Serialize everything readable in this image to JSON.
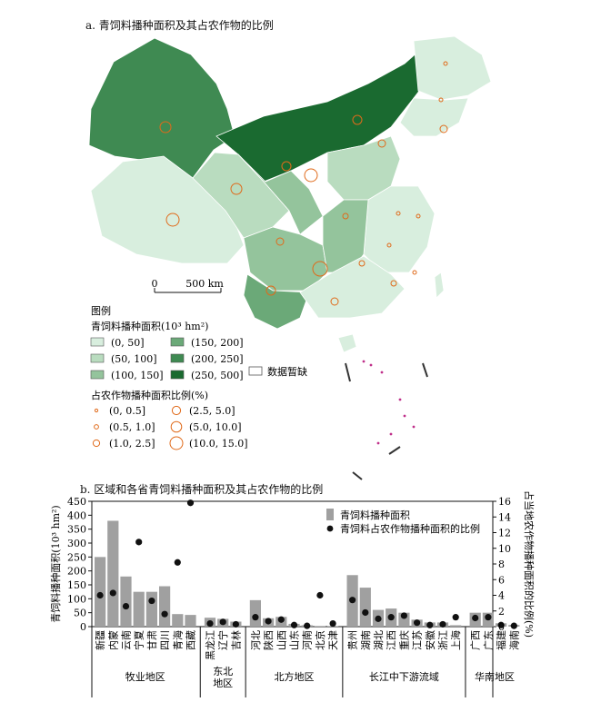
{
  "map": {
    "title": "a. 青饲料播种面积及其占农作物的比例",
    "scale_zero": "0",
    "scale_label": "500 km",
    "legend": {
      "heading": "图例",
      "area_title": "青饲料播种面积(10³ hm²)",
      "area_classes": [
        {
          "label": "(0, 50]",
          "color": "#d8eede"
        },
        {
          "label": "(50, 100]",
          "color": "#b9dcbf"
        },
        {
          "label": "(100, 150]",
          "color": "#94c49c"
        },
        {
          "label": "(150, 200]",
          "color": "#6ba978"
        },
        {
          "label": "(200, 250]",
          "color": "#3f8a52"
        },
        {
          "label": "(250, 500]",
          "color": "#1a6a30"
        }
      ],
      "nodata_label": "数据暂缺",
      "ratio_title": "占农作物播种面积比例(%)",
      "ratio_classes": [
        {
          "label": "(0, 0.5]"
        },
        {
          "label": "(0.5, 1.0]"
        },
        {
          "label": "(1.0, 2.5]"
        },
        {
          "label": "(2.5, 5.0]"
        },
        {
          "label": "(5.0, 10.0]"
        },
        {
          "label": "(10.0, 15.0]"
        }
      ],
      "circle_color": "#e06a1a"
    }
  },
  "chart_data": {
    "type": "bar",
    "title": "b. 区域和各省青饲料播种面积及其占农作物的比例",
    "ylabel_left": "青饲料播种面积(10³ hm²)",
    "ylabel_right": "占当地农作物播种面积的比例(%)",
    "ylim_left": [
      0,
      450
    ],
    "yticks_left": [
      0,
      50,
      100,
      150,
      200,
      250,
      300,
      350,
      400,
      450
    ],
    "ylim_right": [
      0,
      16
    ],
    "yticks_right": [
      0,
      2,
      4,
      6,
      8,
      10,
      12,
      14,
      16
    ],
    "legend": {
      "bar": "青饲料播种面积",
      "dot": "青饲料占农作物播种面积的比例"
    },
    "bar_color": "#a0a0a0",
    "dot_color": "#111111",
    "groups": [
      {
        "name": "牧业地区",
        "categories": [
          "新疆",
          "内蒙",
          "云南",
          "宁夏",
          "甘肃",
          "四川",
          "青海",
          "西藏"
        ],
        "area": [
          250,
          380,
          180,
          125,
          125,
          145,
          45,
          42
        ],
        "ratio": [
          4.0,
          4.3,
          2.6,
          10.8,
          3.3,
          1.6,
          8.2,
          15.8
        ]
      },
      {
        "name": "东北\n地区",
        "categories": [
          "黑龙江",
          "辽宁",
          "吉林"
        ],
        "area": [
          32,
          28,
          18
        ],
        "ratio": [
          0.4,
          0.6,
          0.3
        ]
      },
      {
        "name": "北方地区",
        "categories": [
          "河北",
          "陕西",
          "山西",
          "山东",
          "河南",
          "北京",
          "天津"
        ],
        "area": [
          95,
          30,
          35,
          10,
          5,
          2,
          2
        ],
        "ratio": [
          1.2,
          0.7,
          0.9,
          0.2,
          0.1,
          4.0,
          0.4
        ]
      },
      {
        "name": "长江中下游流域",
        "categories": [
          "贵州",
          "湖南",
          "湖北",
          "江西",
          "重庆",
          "江苏",
          "安徽",
          "浙江",
          "上海"
        ],
        "area": [
          185,
          140,
          60,
          65,
          50,
          25,
          15,
          15,
          5
        ],
        "ratio": [
          3.4,
          1.8,
          1.0,
          1.2,
          1.4,
          0.5,
          0.2,
          0.3,
          1.2
        ]
      },
      {
        "name": "华南地区",
        "categories": [
          "广西",
          "广东",
          "福建",
          "海南"
        ],
        "area": [
          50,
          50,
          12,
          6
        ],
        "ratio": [
          1.1,
          1.2,
          0.2,
          0.1
        ]
      }
    ]
  }
}
